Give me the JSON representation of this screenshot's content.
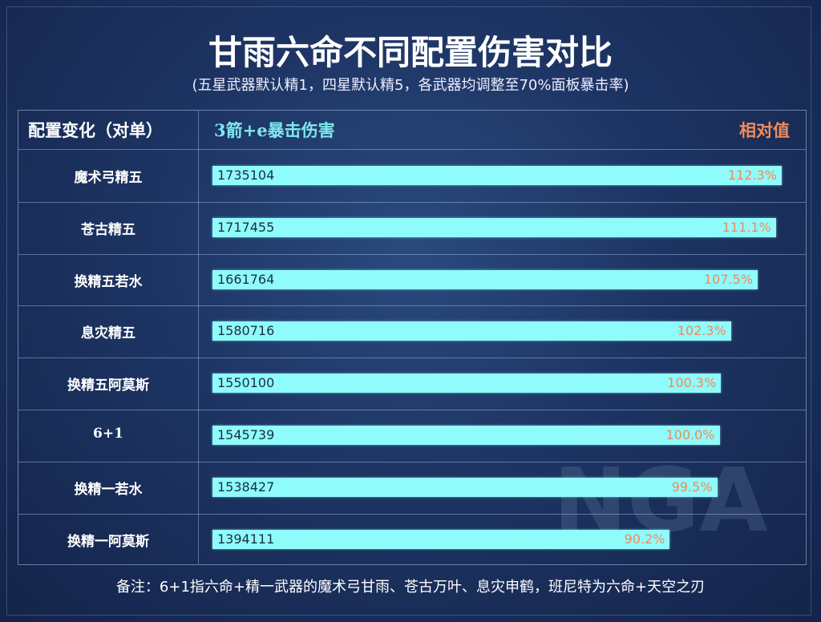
{
  "chart_data": {
    "type": "bar",
    "title": "甘雨六命不同配置伤害对比",
    "subtitle": "(五星武器默认精1，四星默认精5，各武器均调整至70%面板暴击率)",
    "columns": {
      "config": "配置变化（对单）",
      "damage": "3箭+e暴击伤害",
      "relative": "相对值"
    },
    "categories": [
      "魔术弓精五",
      "苍古精五",
      "换精五若水",
      "息灾精五",
      "换精五阿莫斯",
      "6+1",
      "换精一若水",
      "换精一阿莫斯"
    ],
    "values": [
      1735104,
      1717455,
      1661764,
      1580716,
      1550100,
      1545739,
      1538427,
      1394111
    ],
    "relative": [
      "112.3%",
      "111.1%",
      "107.5%",
      "102.3%",
      "100.3%",
      "100.0%",
      "99.5%",
      "90.2%"
    ],
    "colors": {
      "bar": "#8ffbfb",
      "damage_header": "#7fe8ee",
      "relative": "#f08a5a"
    }
  },
  "note": "备注：6+1指六命+精一武器的魔术弓甘雨、苍古万叶、息灾申鹤，班尼特为六命+天空之刃",
  "watermark": "NGA"
}
